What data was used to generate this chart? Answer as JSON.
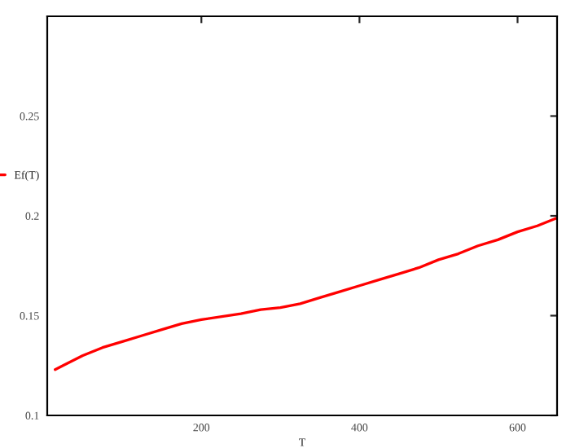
{
  "chart_data": {
    "type": "line",
    "xlabel": "T",
    "x": [
      15,
      25,
      50,
      75,
      100,
      125,
      150,
      175,
      200,
      250,
      275,
      300,
      325,
      350,
      375,
      400,
      425,
      450,
      475,
      500,
      525,
      550,
      575,
      600,
      625,
      650
    ],
    "series": [
      {
        "name": "Ef(T)",
        "color": "#ff0000",
        "values": [
          0.123,
          0.125,
          0.13,
          0.134,
          0.137,
          0.14,
          0.143,
          0.146,
          0.148,
          0.151,
          0.153,
          0.154,
          0.156,
          0.159,
          0.162,
          0.165,
          0.168,
          0.171,
          0.174,
          0.178,
          0.181,
          0.185,
          0.188,
          0.192,
          0.195,
          0.199
        ]
      }
    ],
    "xlim": [
      5,
      650
    ],
    "xticks": [
      200,
      400,
      600
    ],
    "ylim": [
      0.1,
      0.3
    ],
    "yticks": [
      0.1,
      0.15,
      0.2,
      0.25
    ],
    "grid": false,
    "legend": "left",
    "marker": "none",
    "line_style": "solid"
  }
}
